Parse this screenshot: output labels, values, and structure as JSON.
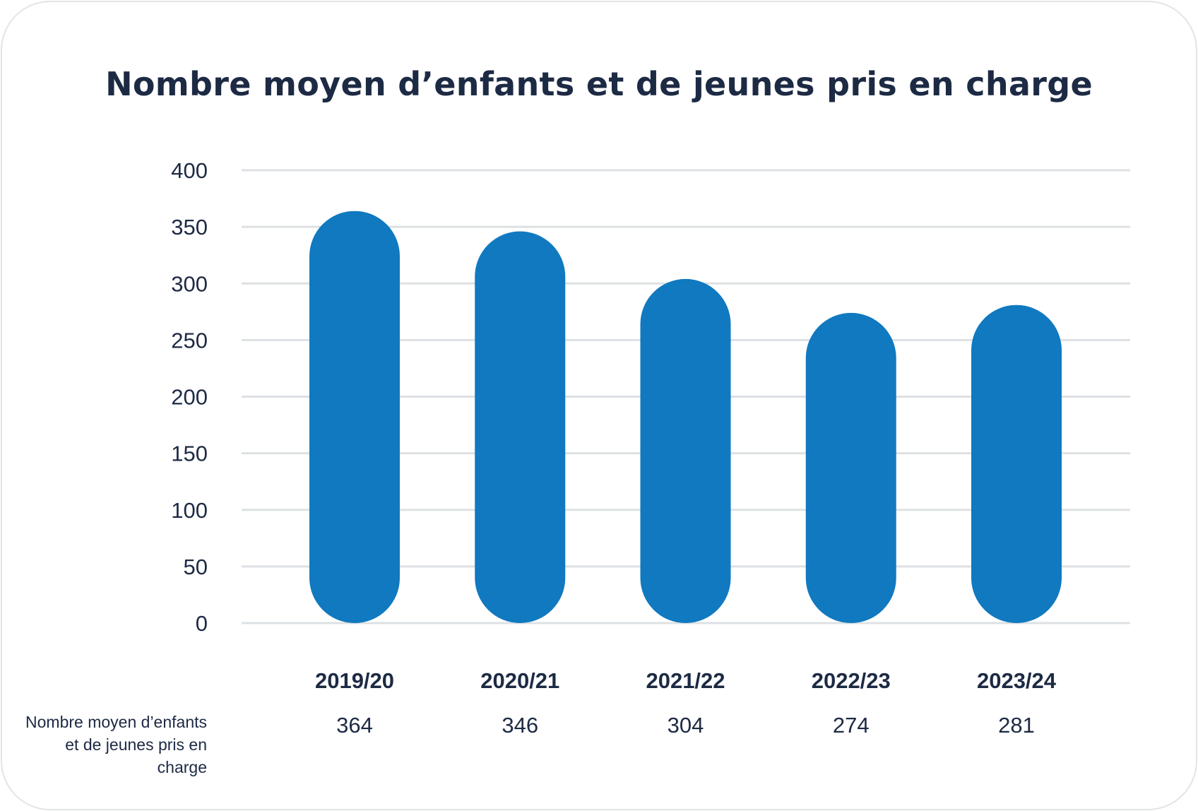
{
  "chart_data": {
    "type": "bar",
    "title": "Nombre moyen d’enfants et de jeunes pris en charge",
    "categories": [
      "2019/20",
      "2020/21",
      "2021/22",
      "2022/23",
      "2023/24"
    ],
    "series": [
      {
        "name": "Nombre moyen d’enfants et de jeunes pris en charge",
        "values": [
          364,
          346,
          304,
          274,
          281
        ]
      }
    ],
    "ylim": [
      0,
      400
    ],
    "yticks": [
      0,
      50,
      100,
      150,
      200,
      250,
      300,
      350,
      400
    ],
    "grid": true,
    "bar_color": "#1079c0",
    "grid_color": "#dde1e4",
    "text_color": "#1d2a44"
  }
}
